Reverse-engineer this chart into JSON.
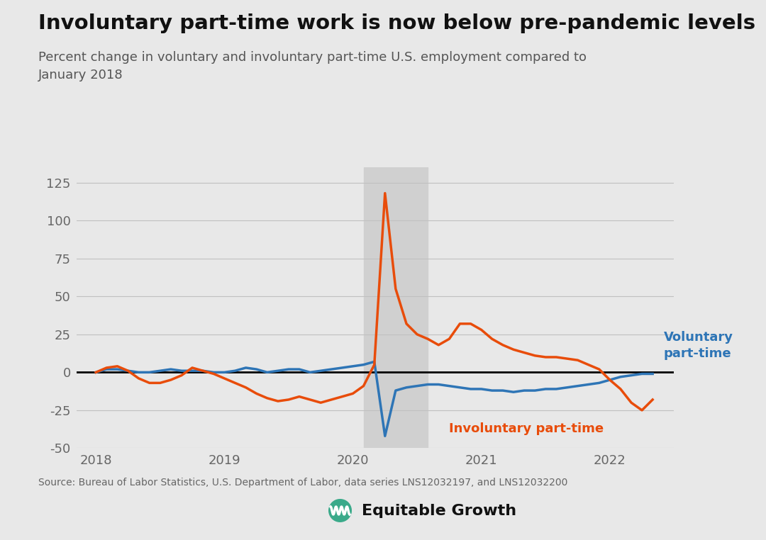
{
  "title": "Involuntary part-time work is now below pre-pandemic levels",
  "subtitle": "Percent change in voluntary and involuntary part-time U.S. employment compared to\nJanuary 2018",
  "source": "Source: Bureau of Labor Statistics, U.S. Department of Labor, data series LNS12032197, and LNS12032200",
  "bg_color": "#e8e8e8",
  "plot_bg_color": "#e8e8e8",
  "shade_color": "#d0d0d0",
  "voluntary_color": "#2e75b6",
  "involuntary_color": "#e84c0a",
  "ylim": [
    -50,
    135
  ],
  "yticks": [
    -50,
    -25,
    0,
    25,
    50,
    75,
    100,
    125
  ],
  "shade_start": 2020.083,
  "shade_end": 2020.583,
  "dates": [
    2018.0,
    2018.083,
    2018.167,
    2018.25,
    2018.333,
    2018.417,
    2018.5,
    2018.583,
    2018.667,
    2018.75,
    2018.833,
    2018.917,
    2019.0,
    2019.083,
    2019.167,
    2019.25,
    2019.333,
    2019.417,
    2019.5,
    2019.583,
    2019.667,
    2019.75,
    2019.833,
    2019.917,
    2020.0,
    2020.083,
    2020.167,
    2020.25,
    2020.333,
    2020.417,
    2020.5,
    2020.583,
    2020.667,
    2020.75,
    2020.833,
    2020.917,
    2021.0,
    2021.083,
    2021.167,
    2021.25,
    2021.333,
    2021.417,
    2021.5,
    2021.583,
    2021.667,
    2021.75,
    2021.833,
    2021.917,
    2022.0,
    2022.083,
    2022.167,
    2022.25,
    2022.333
  ],
  "values_voluntary": [
    0,
    2,
    2,
    1,
    0,
    0,
    1,
    2,
    1,
    1,
    1,
    0,
    0,
    1,
    3,
    2,
    0,
    1,
    2,
    2,
    0,
    1,
    2,
    3,
    4,
    5,
    7,
    -42,
    -12,
    -10,
    -9,
    -8,
    -8,
    -9,
    -10,
    -11,
    -11,
    -12,
    -12,
    -13,
    -12,
    -12,
    -11,
    -11,
    -10,
    -9,
    -8,
    -7,
    -5,
    -3,
    -2,
    -1,
    -1
  ],
  "values_involuntary": [
    0,
    3,
    4,
    1,
    -4,
    -7,
    -7,
    -5,
    -2,
    3,
    1,
    -1,
    -4,
    -7,
    -10,
    -14,
    -17,
    -19,
    -18,
    -16,
    -18,
    -20,
    -18,
    -16,
    -14,
    -9,
    5,
    118,
    55,
    32,
    25,
    22,
    18,
    22,
    32,
    32,
    28,
    22,
    18,
    15,
    13,
    11,
    10,
    10,
    9,
    8,
    5,
    2,
    -5,
    -11,
    -20,
    -25,
    -18
  ],
  "label_voluntary": "Voluntary\npart-time",
  "label_involuntary": "Involuntary part-time",
  "xticks": [
    2018,
    2019,
    2020,
    2021,
    2022
  ],
  "xlim": [
    2017.85,
    2022.5
  ]
}
